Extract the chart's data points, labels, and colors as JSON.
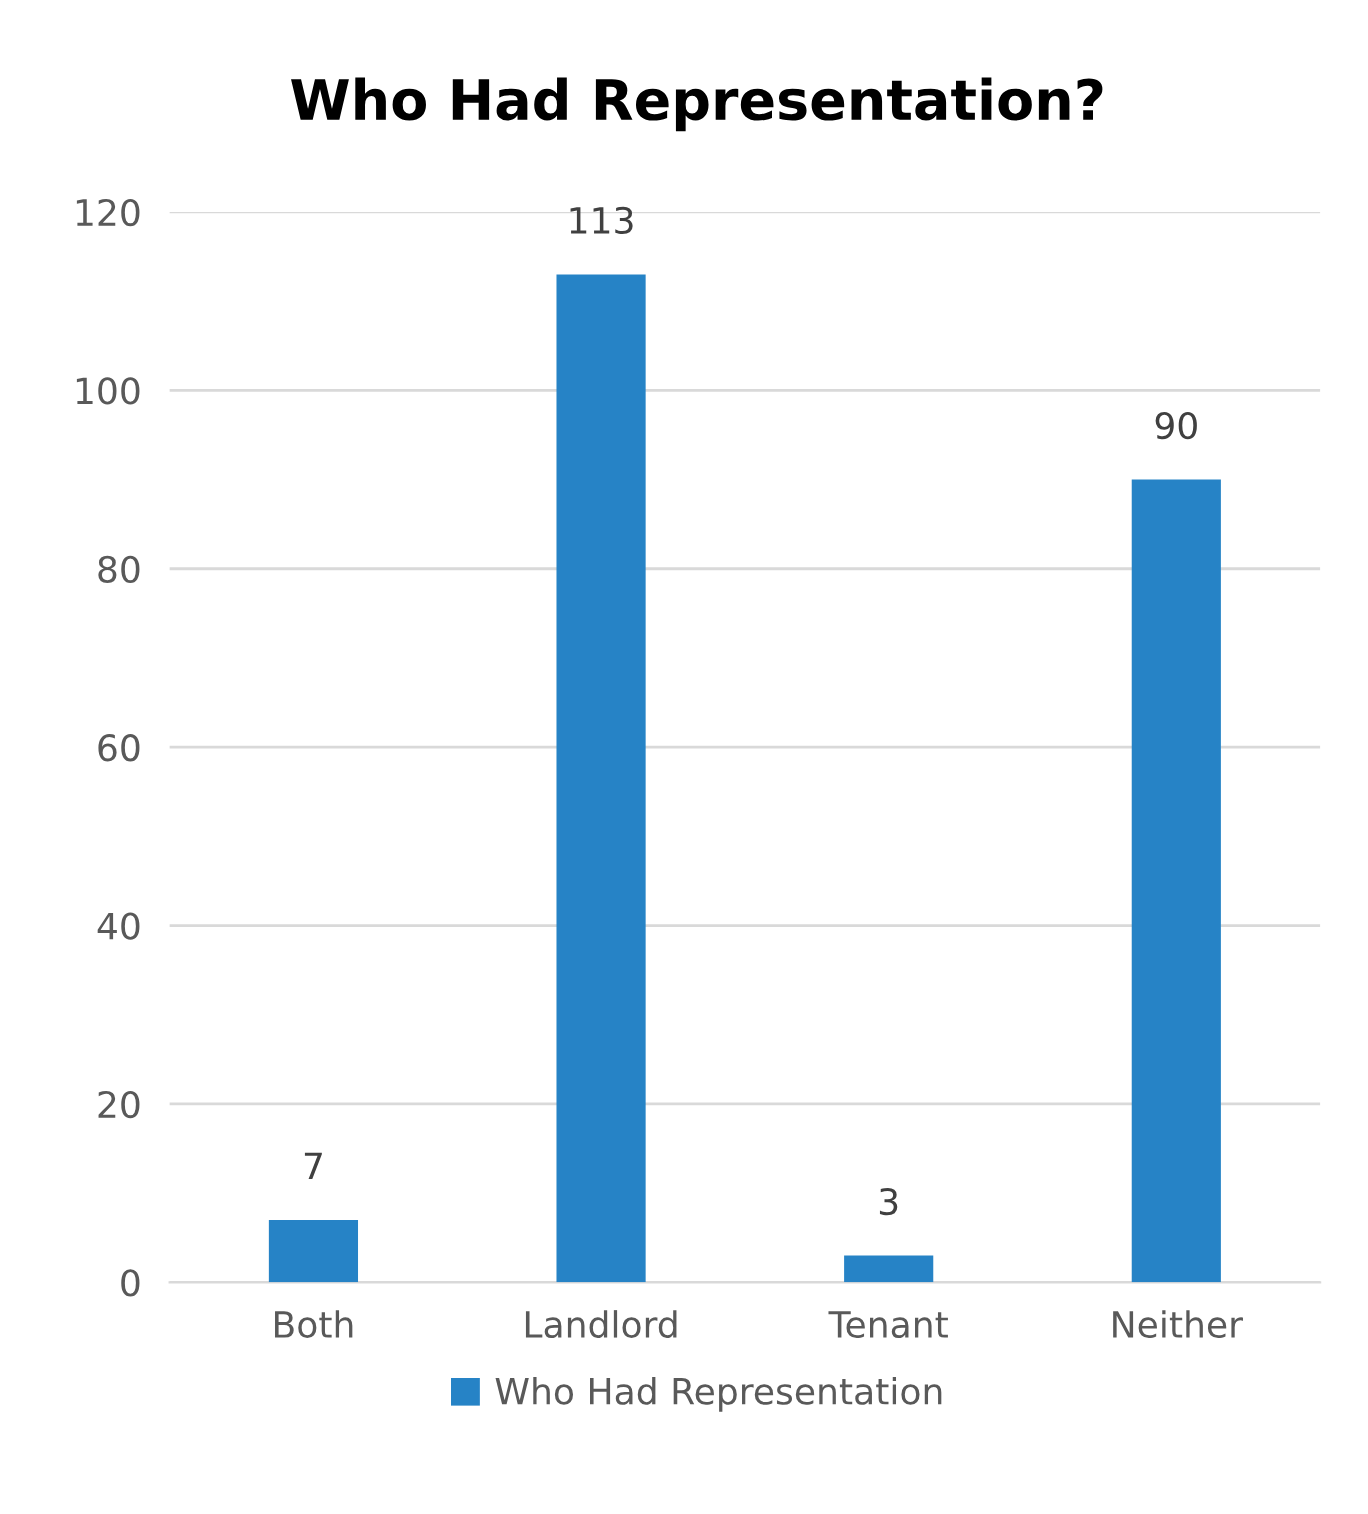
{
  "chart_data": {
    "type": "bar",
    "title": "Who Had Representation?",
    "categories": [
      "Both",
      "Landlord",
      "Tenant",
      "Neither"
    ],
    "series": [
      {
        "name": "Who Had Representation",
        "color": "#2683c6",
        "values": [
          7,
          113,
          3,
          90
        ]
      }
    ],
    "ylim": [
      0,
      120
    ],
    "yticks": [
      0,
      20,
      40,
      60,
      80,
      100,
      120
    ],
    "grid": "y",
    "legend": "bottom",
    "data_labels": true
  }
}
